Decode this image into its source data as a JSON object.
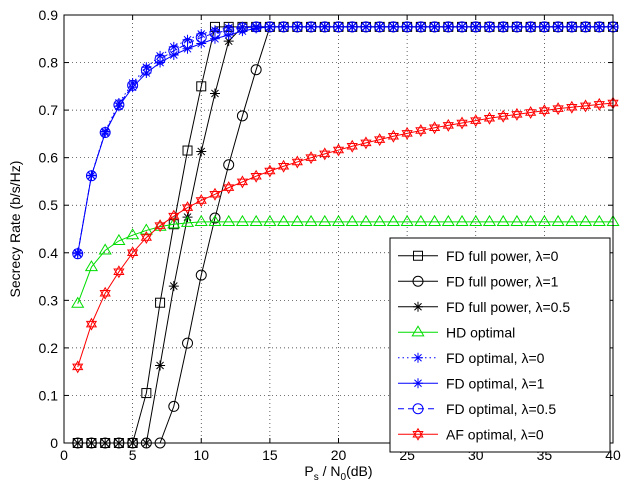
{
  "chart_data": {
    "type": "line",
    "title": "",
    "xlabel": {
      "main": "P",
      "sub1": "s",
      "mid": " / N",
      "sub2": "0",
      "tail": "(dB)"
    },
    "ylabel": "Secrecy Rate (b/s/Hz)",
    "xlim": [
      0,
      40
    ],
    "ylim": [
      0,
      0.9
    ],
    "xticks": [
      "0",
      "5",
      "10",
      "15",
      "20",
      "25",
      "30",
      "35",
      "40"
    ],
    "yticks": [
      "0",
      "0.1",
      "0.2",
      "0.3",
      "0.4",
      "0.5",
      "0.6",
      "0.7",
      "0.8",
      "0.9"
    ],
    "grid": true,
    "legend_position": "bottom-right",
    "series": [
      {
        "name": "FD full power, λ=0",
        "color": "#000000",
        "line": "solid",
        "marker": "square",
        "x": [
          1,
          2,
          3,
          4,
          5,
          6,
          7,
          8,
          9,
          10,
          11,
          12,
          13,
          14,
          15,
          16,
          17,
          18,
          19,
          20,
          21,
          22,
          23,
          24,
          25,
          26,
          27,
          28,
          29,
          30,
          31,
          32,
          33,
          34,
          35,
          36,
          37,
          38,
          39,
          40
        ],
        "y": [
          0,
          0,
          0,
          0,
          0,
          0.105,
          0.295,
          0.46,
          0.615,
          0.75,
          0.875,
          0.875,
          0.875,
          0.875,
          0.875,
          0.875,
          0.875,
          0.875,
          0.875,
          0.875,
          0.875,
          0.875,
          0.875,
          0.875,
          0.875,
          0.875,
          0.875,
          0.875,
          0.875,
          0.875,
          0.875,
          0.875,
          0.875,
          0.875,
          0.875,
          0.875,
          0.875,
          0.875,
          0.875,
          0.875
        ]
      },
      {
        "name": "FD full power, λ=1",
        "color": "#000000",
        "line": "solid",
        "marker": "circle",
        "x": [
          1,
          2,
          3,
          4,
          5,
          6,
          7,
          8,
          9,
          10,
          11,
          12,
          13,
          14,
          15,
          16,
          17,
          18,
          19,
          20,
          21,
          22,
          23,
          24,
          25,
          26,
          27,
          28,
          29,
          30,
          31,
          32,
          33,
          34,
          35,
          36,
          37,
          38,
          39,
          40
        ],
        "y": [
          0,
          0,
          0,
          0,
          0,
          0,
          0,
          0.077,
          0.21,
          0.353,
          0.473,
          0.585,
          0.688,
          0.785,
          0.875,
          0.875,
          0.875,
          0.875,
          0.875,
          0.875,
          0.875,
          0.875,
          0.875,
          0.875,
          0.875,
          0.875,
          0.875,
          0.875,
          0.875,
          0.875,
          0.875,
          0.875,
          0.875,
          0.875,
          0.875,
          0.875,
          0.875,
          0.875,
          0.875,
          0.875
        ]
      },
      {
        "name": "FD full power, λ=0.5",
        "color": "#000000",
        "line": "solid",
        "marker": "asterisk",
        "x": [
          1,
          2,
          3,
          4,
          5,
          6,
          7,
          8,
          9,
          10,
          11,
          12,
          13,
          14,
          15,
          16,
          17,
          18,
          19,
          20,
          21,
          22,
          23,
          24,
          25,
          26,
          27,
          28,
          29,
          30,
          31,
          32,
          33,
          34,
          35,
          36,
          37,
          38,
          39,
          40
        ],
        "y": [
          0,
          0,
          0,
          0,
          0,
          0,
          0.163,
          0.33,
          0.475,
          0.613,
          0.735,
          0.845,
          0.875,
          0.875,
          0.875,
          0.875,
          0.875,
          0.875,
          0.875,
          0.875,
          0.875,
          0.875,
          0.875,
          0.875,
          0.875,
          0.875,
          0.875,
          0.875,
          0.875,
          0.875,
          0.875,
          0.875,
          0.875,
          0.875,
          0.875,
          0.875,
          0.875,
          0.875,
          0.875,
          0.875
        ]
      },
      {
        "name": "HD optimal",
        "color": "#00dd00",
        "line": "solid",
        "marker": "triangle",
        "x": [
          1,
          2,
          3,
          4,
          5,
          6,
          7,
          8,
          9,
          10,
          11,
          12,
          13,
          14,
          15,
          16,
          17,
          18,
          19,
          20,
          21,
          22,
          23,
          24,
          25,
          26,
          27,
          28,
          29,
          30,
          31,
          32,
          33,
          34,
          35,
          36,
          37,
          38,
          39,
          40
        ],
        "y": [
          0.293,
          0.37,
          0.405,
          0.425,
          0.437,
          0.447,
          0.455,
          0.46,
          0.463,
          0.465,
          0.465,
          0.465,
          0.465,
          0.465,
          0.465,
          0.465,
          0.465,
          0.465,
          0.465,
          0.465,
          0.465,
          0.465,
          0.465,
          0.465,
          0.465,
          0.465,
          0.465,
          0.465,
          0.465,
          0.465,
          0.465,
          0.465,
          0.465,
          0.465,
          0.465,
          0.465,
          0.465,
          0.465,
          0.465,
          0.465
        ]
      },
      {
        "name": "FD optimal, λ=0",
        "color": "#0000ff",
        "line": "dotted",
        "marker": "asterisk",
        "x": [
          1,
          2,
          3,
          4,
          5,
          6,
          7,
          8,
          9,
          10,
          11,
          12,
          13,
          14,
          15,
          16,
          17,
          18,
          19,
          20,
          21,
          22,
          23,
          24,
          25,
          26,
          27,
          28,
          29,
          30,
          31,
          32,
          33,
          34,
          35,
          36,
          37,
          38,
          39,
          40
        ],
        "y": [
          0.4,
          0.563,
          0.655,
          0.715,
          0.757,
          0.79,
          0.814,
          0.833,
          0.848,
          0.86,
          0.868,
          0.873,
          0.875,
          0.875,
          0.875,
          0.875,
          0.875,
          0.875,
          0.875,
          0.875,
          0.875,
          0.875,
          0.875,
          0.875,
          0.875,
          0.875,
          0.875,
          0.875,
          0.875,
          0.875,
          0.875,
          0.875,
          0.875,
          0.875,
          0.875,
          0.875,
          0.875,
          0.875,
          0.875,
          0.875
        ]
      },
      {
        "name": "FD optimal, λ=1",
        "color": "#0000ff",
        "line": "solid",
        "marker": "asterisk",
        "x": [
          1,
          2,
          3,
          4,
          5,
          6,
          7,
          8,
          9,
          10,
          11,
          12,
          13,
          14,
          15,
          16,
          17,
          18,
          19,
          20,
          21,
          22,
          23,
          24,
          25,
          26,
          27,
          28,
          29,
          30,
          31,
          32,
          33,
          34,
          35,
          36,
          37,
          38,
          39,
          40
        ],
        "y": [
          0.398,
          0.562,
          0.652,
          0.708,
          0.748,
          0.778,
          0.8,
          0.816,
          0.829,
          0.84,
          0.85,
          0.858,
          0.866,
          0.872,
          0.875,
          0.875,
          0.875,
          0.875,
          0.875,
          0.875,
          0.875,
          0.875,
          0.875,
          0.875,
          0.875,
          0.875,
          0.875,
          0.875,
          0.875,
          0.875,
          0.875,
          0.875,
          0.875,
          0.875,
          0.875,
          0.875,
          0.875,
          0.875,
          0.875,
          0.875
        ]
      },
      {
        "name": "FD optimal, λ=0.5",
        "color": "#0000ff",
        "line": "dashed",
        "marker": "circle",
        "x": [
          1,
          2,
          3,
          4,
          5,
          6,
          7,
          8,
          9,
          10,
          11,
          12,
          13,
          14,
          15,
          16,
          17,
          18,
          19,
          20,
          21,
          22,
          23,
          24,
          25,
          26,
          27,
          28,
          29,
          30,
          31,
          32,
          33,
          34,
          35,
          36,
          37,
          38,
          39,
          40
        ],
        "y": [
          0.398,
          0.562,
          0.653,
          0.711,
          0.752,
          0.784,
          0.807,
          0.825,
          0.84,
          0.853,
          0.862,
          0.868,
          0.873,
          0.875,
          0.875,
          0.875,
          0.875,
          0.875,
          0.875,
          0.875,
          0.875,
          0.875,
          0.875,
          0.875,
          0.875,
          0.875,
          0.875,
          0.875,
          0.875,
          0.875,
          0.875,
          0.875,
          0.875,
          0.875,
          0.875,
          0.875,
          0.875,
          0.875,
          0.875,
          0.875
        ]
      },
      {
        "name": "AF optimal, λ=0",
        "color": "#ff0000",
        "line": "solid",
        "marker": "hexagram",
        "x": [
          1,
          2,
          3,
          4,
          5,
          6,
          7,
          8,
          9,
          10,
          11,
          12,
          13,
          14,
          15,
          16,
          17,
          18,
          19,
          20,
          21,
          22,
          23,
          24,
          25,
          26,
          27,
          28,
          29,
          30,
          31,
          32,
          33,
          34,
          35,
          36,
          37,
          38,
          39,
          40
        ],
        "y": [
          0.16,
          0.25,
          0.315,
          0.36,
          0.4,
          0.432,
          0.457,
          0.477,
          0.495,
          0.51,
          0.523,
          0.537,
          0.549,
          0.561,
          0.572,
          0.582,
          0.591,
          0.6,
          0.608,
          0.616,
          0.624,
          0.631,
          0.638,
          0.645,
          0.651,
          0.657,
          0.663,
          0.668,
          0.673,
          0.678,
          0.683,
          0.687,
          0.691,
          0.695,
          0.699,
          0.703,
          0.706,
          0.709,
          0.712,
          0.715
        ]
      }
    ]
  }
}
